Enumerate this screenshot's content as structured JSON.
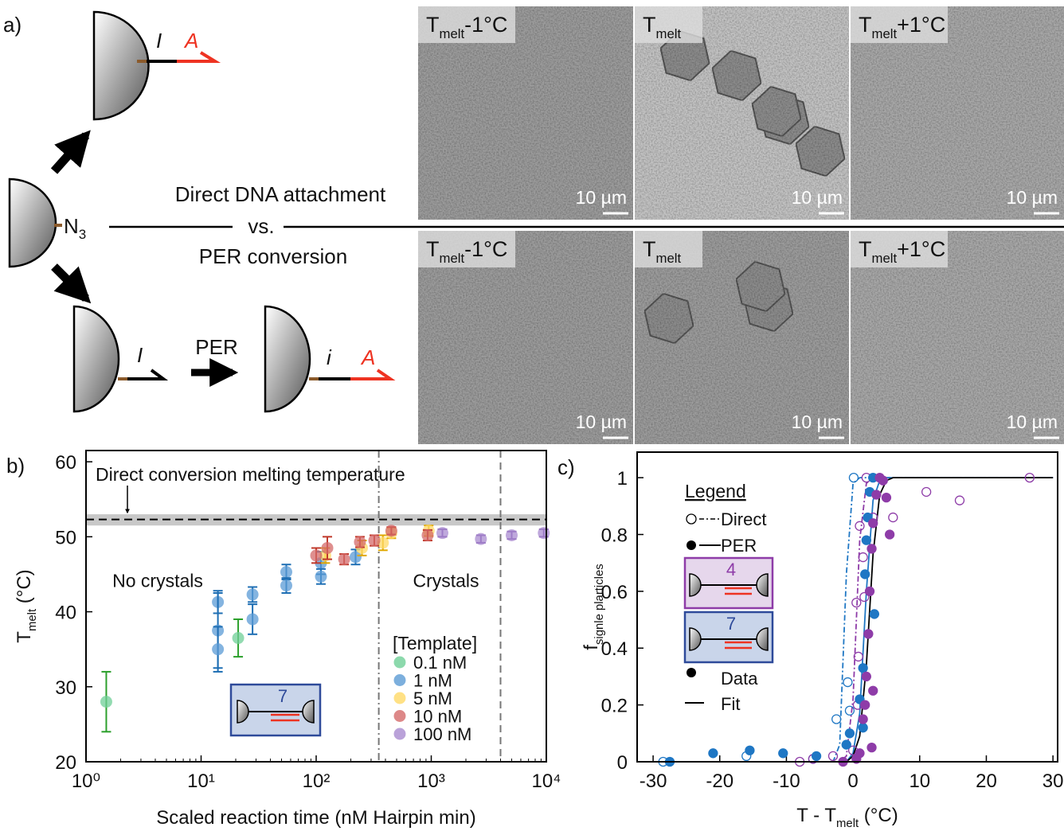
{
  "panel_a": {
    "label": "a)",
    "top_particle": {
      "inert": "I",
      "active": "A"
    },
    "azide": {
      "main": "N",
      "sub": "3"
    },
    "caption_top": "Direct DNA attachment",
    "caption_mid": "vs.",
    "caption_bottom": "PER conversion",
    "bottom_left_particle": {
      "inert": "I"
    },
    "reaction": "PER",
    "bottom_right_particle": {
      "inert": "i",
      "active": "A"
    },
    "images": [
      [
        {
          "main": "T",
          "sub": "melt",
          "suffix": "-1°C",
          "scale": "10 µm"
        },
        {
          "main": "T",
          "sub": "melt",
          "suffix": "",
          "scale": "10 µm"
        },
        {
          "main": "T",
          "sub": "melt",
          "suffix": "+1°C",
          "scale": "10 µm"
        }
      ],
      [
        {
          "main": "T",
          "sub": "melt",
          "suffix": "-1°C",
          "scale": "10 µm"
        },
        {
          "main": "T",
          "sub": "melt",
          "suffix": "",
          "scale": "10 µm"
        },
        {
          "main": "T",
          "sub": "melt",
          "suffix": "+1°C",
          "scale": "10 µm"
        }
      ]
    ]
  },
  "chart_data": [
    {
      "type": "scatter",
      "panel_label": "b)",
      "xlabel": "Scaled reaction time (nM Hairpin min)",
      "ylabel": {
        "main": "T",
        "sub": "melt",
        "rest": " (°C)"
      },
      "xlog": true,
      "xlim": [
        1,
        10000
      ],
      "xticks": [
        {
          "value": 1,
          "label": "10⁰"
        },
        {
          "value": 10,
          "label": "10¹"
        },
        {
          "value": 100,
          "label": "10²"
        },
        {
          "value": 1000,
          "label": "10³"
        },
        {
          "value": 10000,
          "label": "10⁴"
        }
      ],
      "ylim": [
        20,
        61.5
      ],
      "yticks": [
        20,
        30,
        40,
        50,
        60
      ],
      "reference_band": [
        51.5,
        53
      ],
      "reference_line": 52.3,
      "reference_label": "Direct conversion melting temperature",
      "vlines": [
        350,
        4000
      ],
      "regions": [
        "No crystals",
        "Crystals"
      ],
      "legend_title": "[Template]",
      "inset_label": "7",
      "series": [
        {
          "name": "0.1 nM",
          "color": "#6fcf97",
          "error_color": "#2ca02c",
          "x": [
            1.5,
            21
          ],
          "values": [
            28,
            36.5
          ],
          "errors": [
            4,
            2.5
          ]
        },
        {
          "name": "1 nM",
          "color": "#5b9bd5",
          "error_color": "#1f6fb4",
          "x": [
            14,
            14,
            14,
            28,
            28,
            55,
            55,
            110,
            110,
            220
          ],
          "values": [
            41.3,
            37.5,
            35,
            42.3,
            39,
            45.3,
            43.5,
            46.5,
            44.7,
            47.3
          ],
          "errors": [
            1.5,
            5,
            3,
            1,
            2,
            1,
            1,
            1.5,
            1,
            1
          ]
        },
        {
          "name": "5 nM",
          "color": "#ffd966",
          "error_color": "#e0a800",
          "x": [
            120,
            250,
            380,
            450,
            950
          ],
          "values": [
            47.5,
            48.5,
            49.2,
            50.5,
            50.8
          ],
          "errors": [
            1,
            1,
            1,
            0.7,
            0.7
          ]
        },
        {
          "name": "10 nM",
          "color": "#d46a6a",
          "error_color": "#c0392b",
          "x": [
            100,
            125,
            175,
            240,
            320,
            450,
            930
          ],
          "values": [
            47.5,
            48.5,
            47,
            49.3,
            49.5,
            50.8,
            50.2
          ],
          "errors": [
            1,
            1.5,
            0.7,
            0.7,
            0.7,
            0.5,
            0.7
          ]
        },
        {
          "name": "100 nM",
          "color": "#a98bd0",
          "error_color": "#7b52ab",
          "x": [
            1250,
            2700,
            5000,
            9500
          ],
          "values": [
            50.5,
            49.7,
            50.2,
            50.5
          ],
          "errors": [
            0.5,
            0.5,
            0.5,
            0.5
          ]
        }
      ]
    },
    {
      "type": "scatter",
      "panel_label": "c)",
      "xlabel": {
        "main": "T - T",
        "sub": "melt",
        "rest": " (°C)"
      },
      "ylabel": {
        "main": "f",
        "sub": "signle plarticles"
      },
      "xlim": [
        -32.4,
        30.7
      ],
      "xticks": [
        -30,
        -20,
        -10,
        0,
        10,
        20,
        30
      ],
      "ylim": [
        0,
        1.09
      ],
      "yticks": [
        0,
        0.2,
        0.4,
        0.6,
        0.8,
        1
      ],
      "legend_title": "Legend",
      "legend": {
        "direct": "Direct",
        "per": "PER",
        "data": "Data",
        "fit": "Fit"
      },
      "insets": [
        {
          "label": "4",
          "color": "#8e3ca8",
          "fill": "#e6d7ec"
        },
        {
          "label": "7",
          "color": "#2e4a9a",
          "fill": "#c9d5ea"
        }
      ],
      "series": [
        {
          "style": "open",
          "color": "#1f77c4",
          "x": [
            -28.5,
            -16,
            -6,
            -2.5,
            -0.8,
            -0.5,
            0.1
          ],
          "values": [
            0,
            0.02,
            0.01,
            0.15,
            0.28,
            0.18,
            1
          ]
        },
        {
          "style": "open",
          "color": "#8e3ca8",
          "x": [
            -8,
            -6,
            -3,
            0,
            0.5,
            0.8,
            1,
            1.5,
            2,
            3,
            6,
            11,
            16,
            26.5,
            1.7,
            0.7
          ],
          "values": [
            0,
            0.01,
            0.02,
            0.04,
            0.56,
            0.37,
            0.83,
            0.72,
            1,
            0.86,
            0.86,
            0.95,
            0.92,
            1,
            0.58,
            0.2
          ]
        },
        {
          "style": "filled",
          "color": "#1f77c4",
          "x": [
            -27.5,
            -21,
            -15.5,
            -10.5,
            -5.5,
            -1,
            -0.5,
            1,
            1.5,
            1.8,
            2,
            2.2,
            2.5,
            3,
            3.2,
            1.5
          ],
          "values": [
            0,
            0.03,
            0.04,
            0.03,
            0.02,
            0.06,
            0.1,
            0.22,
            0.33,
            0.66,
            0.78,
            0.86,
            0.95,
            1,
            0.52,
            0.12
          ]
        },
        {
          "style": "filled",
          "color": "#8e3ca8",
          "x": [
            -1.5,
            0.5,
            1,
            1.5,
            1.8,
            2,
            2.3,
            2.5,
            2.8,
            3,
            3.5,
            4,
            4.5,
            5,
            5.5,
            3,
            2.8
          ],
          "values": [
            0,
            0.01,
            0.03,
            0.15,
            0.2,
            0.3,
            0.45,
            0.6,
            0.75,
            0.84,
            0.94,
            1,
            0.99,
            0.93,
            0.8,
            0.25,
            0.05
          ]
        }
      ],
      "fits": [
        {
          "dash": "dashdot",
          "color": "#1f77c4",
          "x": [
            -30,
            -4,
            -3,
            -2,
            -1,
            0,
            1,
            2,
            3,
            4,
            5,
            6,
            30
          ],
          "values": [
            0,
            0,
            0,
            0.06,
            0.66,
            0.98,
            1,
            1,
            1,
            1,
            1,
            1,
            1
          ]
        },
        {
          "dash": "dashdot",
          "color": "#8e3ca8",
          "x": [
            -30,
            -4,
            -3,
            -2,
            -1,
            0,
            1,
            2,
            3,
            4,
            5,
            6,
            30
          ],
          "values": [
            0,
            0,
            0,
            0,
            0.02,
            0.22,
            0.78,
            0.98,
            1,
            1,
            1,
            1,
            1
          ]
        },
        {
          "dash": "solid",
          "color": "#1f77c4",
          "x": [
            -30,
            -4,
            -3,
            -2,
            -1,
            0,
            1,
            2,
            3,
            4,
            5,
            6,
            30
          ],
          "values": [
            0,
            0,
            0,
            0,
            0,
            0.03,
            0.17,
            0.6,
            0.92,
            0.99,
            1,
            1,
            1
          ]
        },
        {
          "dash": "solid",
          "color": "#000000",
          "x": [
            -30,
            -4,
            -3,
            -2,
            -1,
            0,
            1,
            2,
            3,
            4,
            5,
            6,
            30
          ],
          "values": [
            0,
            0,
            0,
            0,
            0,
            0.02,
            0.09,
            0.34,
            0.73,
            0.94,
            0.99,
            1,
            1
          ]
        }
      ]
    }
  ]
}
